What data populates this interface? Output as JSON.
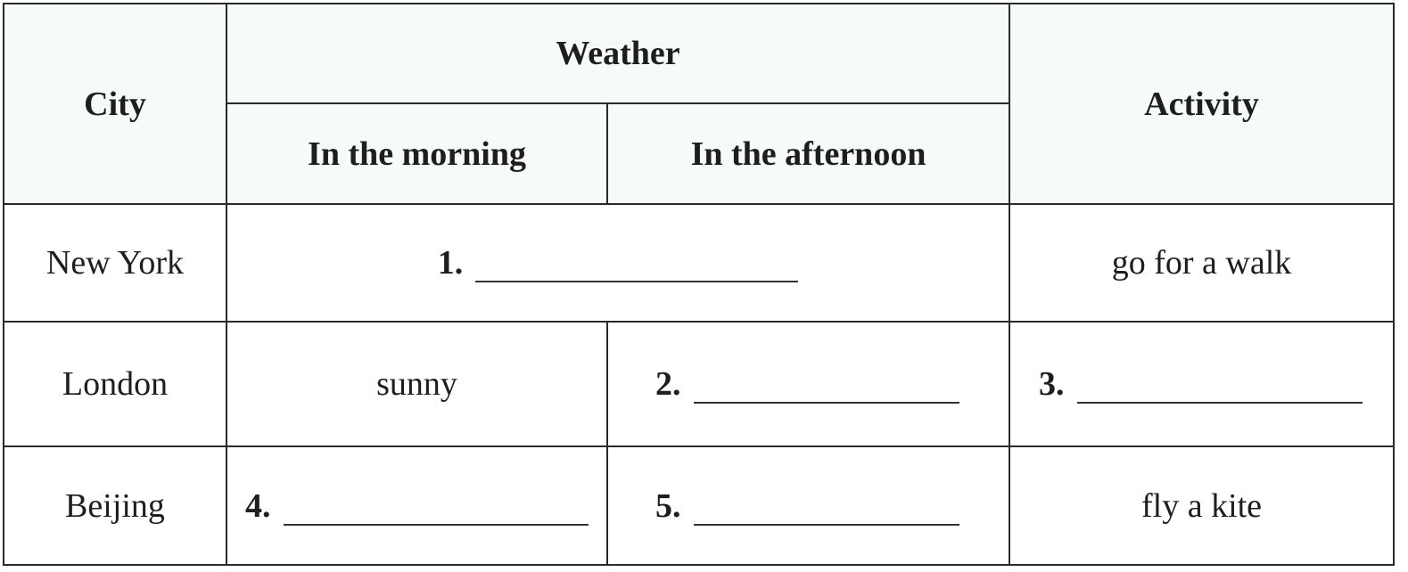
{
  "table": {
    "headers": {
      "city": "City",
      "weather": "Weather",
      "morning": "In the morning",
      "afternoon": "In the afternoon",
      "activity": "Activity"
    },
    "rows": [
      {
        "city": "New York",
        "weather_blank": "1.",
        "activity": "go for a walk"
      },
      {
        "city": "London",
        "morning": "sunny",
        "afternoon_blank": "2.",
        "activity_blank": "3."
      },
      {
        "city": "Beijing",
        "morning_blank": "4.",
        "afternoon_blank": "5.",
        "activity": "fly a kite"
      }
    ]
  }
}
